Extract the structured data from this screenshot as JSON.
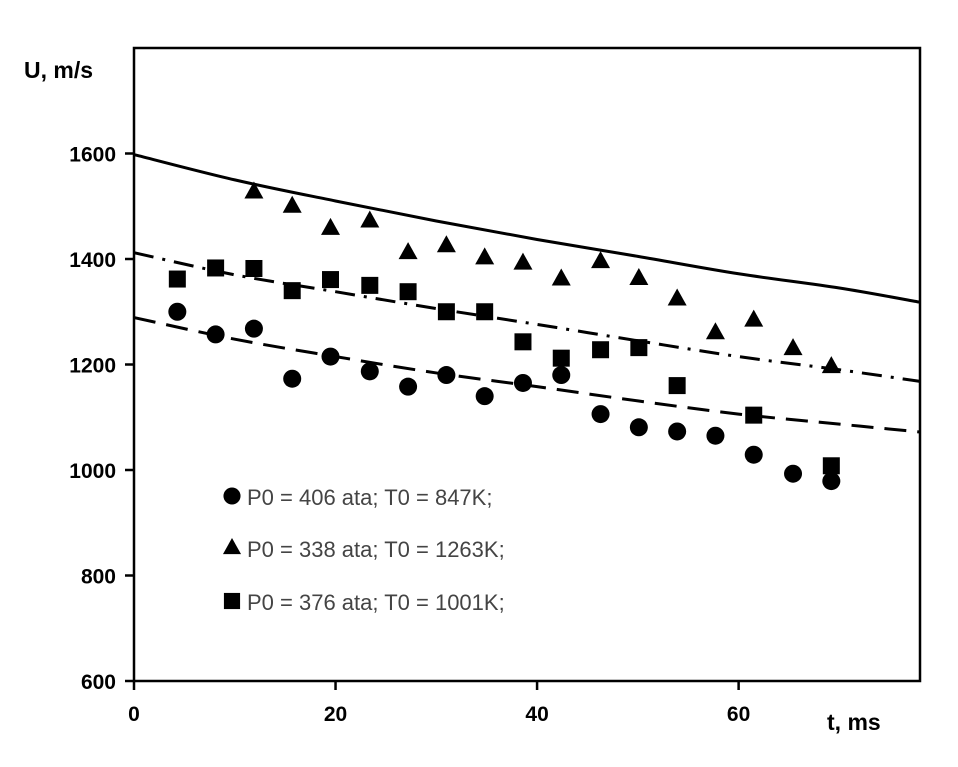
{
  "chart_data": {
    "type": "scatter",
    "xlabel": "t, ms",
    "ylabel": "U, m/s",
    "xlim": [
      0,
      78
    ],
    "ylim": [
      600,
      1800
    ],
    "x_ticks": [
      0,
      20,
      40,
      60
    ],
    "y_ticks": [
      600,
      800,
      1000,
      1200,
      1400,
      1600
    ],
    "legend_placement": "lower-left",
    "series": [
      {
        "name": "P0 = 406 ata; T0 = 847K;",
        "marker": "circle",
        "points": [
          [
            4.3,
            1300
          ],
          [
            8.1,
            1257
          ],
          [
            11.9,
            1268
          ],
          [
            15.7,
            1173
          ],
          [
            19.5,
            1215
          ],
          [
            23.4,
            1187
          ],
          [
            27.2,
            1158
          ],
          [
            31.0,
            1180
          ],
          [
            34.8,
            1140
          ],
          [
            38.6,
            1165
          ],
          [
            42.4,
            1180
          ],
          [
            46.3,
            1106
          ],
          [
            50.1,
            1081
          ],
          [
            53.9,
            1073
          ],
          [
            57.7,
            1065
          ],
          [
            61.5,
            1029
          ],
          [
            65.4,
            993
          ],
          [
            69.2,
            979
          ]
        ]
      },
      {
        "name": "P0 = 338 ata; T0 = 1263K;",
        "marker": "triangle",
        "points": [
          [
            11.9,
            1527
          ],
          [
            15.7,
            1500
          ],
          [
            19.5,
            1458
          ],
          [
            23.4,
            1472
          ],
          [
            27.2,
            1412
          ],
          [
            31.0,
            1425
          ],
          [
            34.8,
            1402
          ],
          [
            38.6,
            1392
          ],
          [
            42.4,
            1362
          ],
          [
            46.3,
            1395
          ],
          [
            50.1,
            1363
          ],
          [
            53.9,
            1324
          ],
          [
            57.7,
            1260
          ],
          [
            61.5,
            1284
          ],
          [
            65.4,
            1230
          ],
          [
            69.2,
            1196
          ]
        ]
      },
      {
        "name": "P0 = 376 ata; T0 = 1001K;",
        "marker": "square",
        "points": [
          [
            4.3,
            1362
          ],
          [
            8.1,
            1383
          ],
          [
            11.9,
            1382
          ],
          [
            15.7,
            1340
          ],
          [
            19.5,
            1361
          ],
          [
            23.4,
            1350
          ],
          [
            27.2,
            1338
          ],
          [
            31.0,
            1300
          ],
          [
            34.8,
            1300
          ],
          [
            38.6,
            1243
          ],
          [
            42.4,
            1212
          ],
          [
            46.3,
            1228
          ],
          [
            50.1,
            1232
          ],
          [
            53.9,
            1160
          ],
          [
            61.5,
            1104
          ],
          [
            69.2,
            1008
          ]
        ]
      }
    ],
    "curves": [
      {
        "style": "solid",
        "points": [
          [
            0,
            1598
          ],
          [
            10,
            1550
          ],
          [
            20,
            1510
          ],
          [
            30,
            1472
          ],
          [
            40,
            1437
          ],
          [
            50,
            1405
          ],
          [
            60,
            1372
          ],
          [
            70,
            1345
          ],
          [
            78,
            1318
          ]
        ]
      },
      {
        "style": "dash-dot",
        "points": [
          [
            0,
            1412
          ],
          [
            10,
            1370
          ],
          [
            20,
            1338
          ],
          [
            30,
            1306
          ],
          [
            40,
            1276
          ],
          [
            50,
            1245
          ],
          [
            60,
            1215
          ],
          [
            70,
            1190
          ],
          [
            78,
            1168
          ]
        ]
      },
      {
        "style": "dashed",
        "points": [
          [
            0,
            1289
          ],
          [
            10,
            1248
          ],
          [
            20,
            1215
          ],
          [
            30,
            1184
          ],
          [
            40,
            1158
          ],
          [
            50,
            1131
          ],
          [
            60,
            1106
          ],
          [
            70,
            1087
          ],
          [
            78,
            1072
          ]
        ]
      }
    ]
  }
}
